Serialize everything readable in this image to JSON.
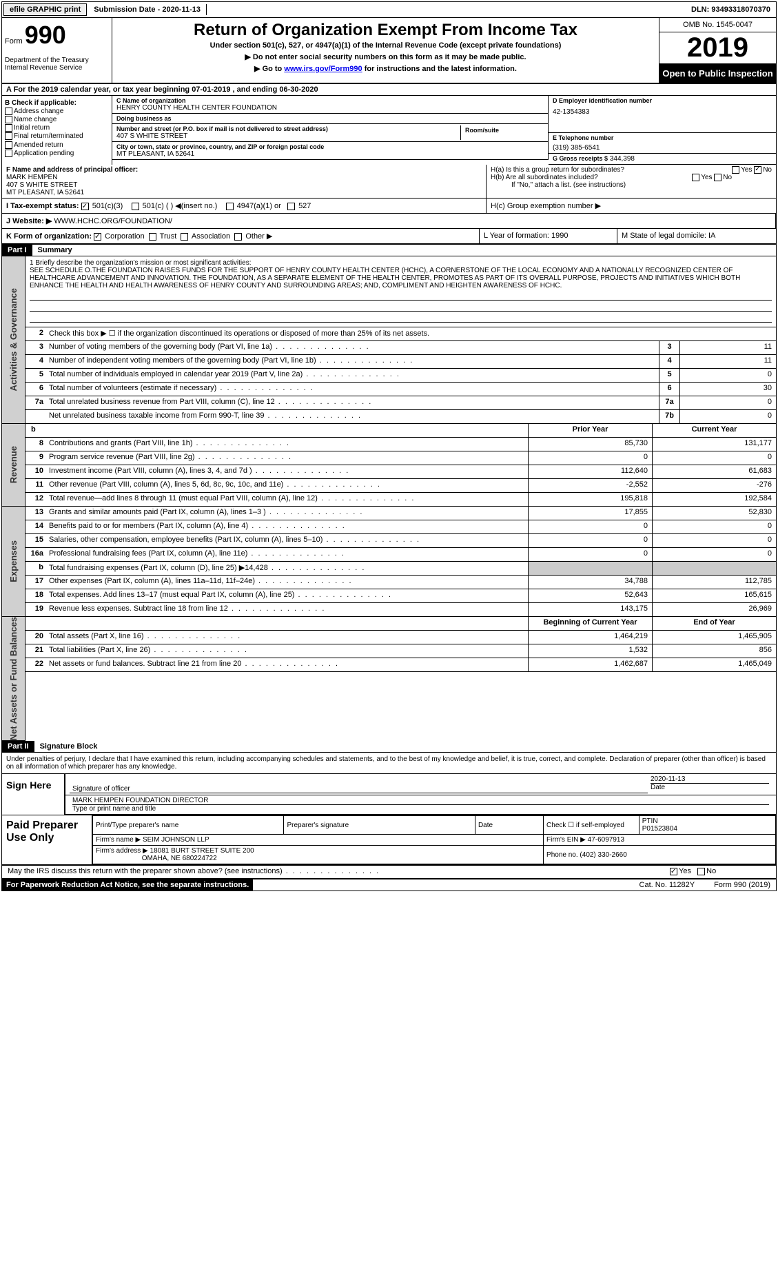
{
  "topbar": {
    "efile": "efile GRAPHIC print",
    "subdate_label": "Submission Date - ",
    "subdate": "2020-11-13",
    "dln_label": "DLN: ",
    "dln": "93493318070370"
  },
  "header": {
    "form": "Form",
    "n990": "990",
    "dept": "Department of the Treasury\nInternal Revenue Service",
    "title": "Return of Organization Exempt From Income Tax",
    "sub": "Under section 501(c), 527, or 4947(a)(1) of the Internal Revenue Code (except private foundations)",
    "sub2a": "▶ Do not enter social security numbers on this form as it may be made public.",
    "sub2b": "▶ Go to ",
    "link": "www.irs.gov/Form990",
    "sub2c": " for instructions and the latest information.",
    "omb": "OMB No. 1545-0047",
    "year": "2019",
    "open": "Open to Public Inspection"
  },
  "rowA": "A  For the 2019 calendar year, or tax year beginning 07-01-2019   , and ending 06-30-2020",
  "boxB": {
    "title": "B Check if applicable:",
    "items": [
      "Address change",
      "Name change",
      "Initial return",
      "Final return/terminated",
      "Amended return",
      "Application pending"
    ]
  },
  "boxC": {
    "name_lbl": "C Name of organization",
    "name": "HENRY COUNTY HEALTH CENTER FOUNDATION",
    "dba_lbl": "Doing business as",
    "dba": "",
    "addr_lbl": "Number and street (or P.O. box if mail is not delivered to street address)",
    "addr": "407 S WHITE STREET",
    "room_lbl": "Room/suite",
    "city_lbl": "City or town, state or province, country, and ZIP or foreign postal code",
    "city": "MT PLEASANT, IA  52641"
  },
  "boxD": {
    "ein_lbl": "D Employer identification number",
    "ein": "42-1354383",
    "tel_lbl": "E Telephone number",
    "tel": "(319) 385-6541",
    "gross_lbl": "G Gross receipts $",
    "gross": "344,398"
  },
  "boxF": {
    "lbl": "F  Name and address of principal officer:",
    "name": "MARK HEMPEN",
    "addr1": "407 S WHITE STREET",
    "addr2": "MT PLEASANT, IA  52641"
  },
  "boxH": {
    "ha": "H(a)  Is this a group return for subordinates?",
    "hb": "H(b)  Are all subordinates included?",
    "hb2": "If \"No,\" attach a list. (see instructions)",
    "hc": "H(c)  Group exemption number ▶",
    "yes": "Yes",
    "no": "No"
  },
  "rowI": {
    "lbl": "I   Tax-exempt status:",
    "o1": "501(c)(3)",
    "o2": "501(c) (  ) ◀(insert no.)",
    "o3": "4947(a)(1) or",
    "o4": "527"
  },
  "rowJ": {
    "lbl": "J  Website: ▶",
    "val": "WWW.HCHC.ORG/FOUNDATION/"
  },
  "rowK": {
    "k1_lbl": "K Form of organization:",
    "k1_opts": [
      "Corporation",
      "Trust",
      "Association",
      "Other ▶"
    ],
    "k2": "L Year of formation: 1990",
    "k3": "M State of legal domicile: IA"
  },
  "part1": {
    "hdr": "Part I",
    "title": "Summary"
  },
  "mission": {
    "lbl": "1   Briefly describe the organization's mission or most significant activities:",
    "text": "SEE SCHEDULE O.THE FOUNDATION RAISES FUNDS FOR THE SUPPORT OF HENRY COUNTY HEALTH CENTER (HCHC), A CORNERSTONE OF THE LOCAL ECONOMY AND A NATIONALLY RECOGNIZED CENTER OF HEALTHCARE ADVANCEMENT AND INNOVATION. THE FOUNDATION, AS A SEPARATE ELEMENT OF THE HEALTH CENTER, PROMOTES AS PART OF ITS OVERALL PURPOSE, PROJECTS AND INITIATIVES WHICH BOTH ENHANCE THE HEALTH AND HEALTH AWARENESS OF HENRY COUNTY AND SURROUNDING AREAS; AND, COMPLIMENT AND HEIGHTEN AWARENESS OF HCHC."
  },
  "gov": {
    "l2": "Check this box ▶ ☐ if the organization discontinued its operations or disposed of more than 25% of its net assets.",
    "rows": [
      {
        "n": "3",
        "d": "Number of voting members of the governing body (Part VI, line 1a)",
        "b": "3",
        "v": "11"
      },
      {
        "n": "4",
        "d": "Number of independent voting members of the governing body (Part VI, line 1b)",
        "b": "4",
        "v": "11"
      },
      {
        "n": "5",
        "d": "Total number of individuals employed in calendar year 2019 (Part V, line 2a)",
        "b": "5",
        "v": "0"
      },
      {
        "n": "6",
        "d": "Total number of volunteers (estimate if necessary)",
        "b": "6",
        "v": "30"
      },
      {
        "n": "7a",
        "d": "Total unrelated business revenue from Part VIII, column (C), line 12",
        "b": "7a",
        "v": "0"
      },
      {
        "n": "",
        "d": "Net unrelated business taxable income from Form 990-T, line 39",
        "b": "7b",
        "v": "0"
      }
    ]
  },
  "rev": {
    "hdr_b": "b",
    "hdr_prior": "Prior Year",
    "hdr_curr": "Current Year",
    "rows": [
      {
        "n": "8",
        "d": "Contributions and grants (Part VIII, line 1h)",
        "p": "85,730",
        "c": "131,177"
      },
      {
        "n": "9",
        "d": "Program service revenue (Part VIII, line 2g)",
        "p": "0",
        "c": "0"
      },
      {
        "n": "10",
        "d": "Investment income (Part VIII, column (A), lines 3, 4, and 7d )",
        "p": "112,640",
        "c": "61,683"
      },
      {
        "n": "11",
        "d": "Other revenue (Part VIII, column (A), lines 5, 6d, 8c, 9c, 10c, and 11e)",
        "p": "-2,552",
        "c": "-276"
      },
      {
        "n": "12",
        "d": "Total revenue—add lines 8 through 11 (must equal Part VIII, column (A), line 12)",
        "p": "195,818",
        "c": "192,584"
      }
    ]
  },
  "exp": {
    "rows": [
      {
        "n": "13",
        "d": "Grants and similar amounts paid (Part IX, column (A), lines 1–3 )",
        "p": "17,855",
        "c": "52,830"
      },
      {
        "n": "14",
        "d": "Benefits paid to or for members (Part IX, column (A), line 4)",
        "p": "0",
        "c": "0"
      },
      {
        "n": "15",
        "d": "Salaries, other compensation, employee benefits (Part IX, column (A), lines 5–10)",
        "p": "0",
        "c": "0"
      },
      {
        "n": "16a",
        "d": "Professional fundraising fees (Part IX, column (A), line 11e)",
        "p": "0",
        "c": "0"
      },
      {
        "n": "b",
        "d": "Total fundraising expenses (Part IX, column (D), line 25) ▶14,428",
        "p": "",
        "c": "",
        "shade": true
      },
      {
        "n": "17",
        "d": "Other expenses (Part IX, column (A), lines 11a–11d, 11f–24e)",
        "p": "34,788",
        "c": "112,785"
      },
      {
        "n": "18",
        "d": "Total expenses. Add lines 13–17 (must equal Part IX, column (A), line 25)",
        "p": "52,643",
        "c": "165,615"
      },
      {
        "n": "19",
        "d": "Revenue less expenses. Subtract line 18 from line 12",
        "p": "143,175",
        "c": "26,969"
      }
    ]
  },
  "net": {
    "hdr_b": "Beginning of Current Year",
    "hdr_e": "End of Year",
    "rows": [
      {
        "n": "20",
        "d": "Total assets (Part X, line 16)",
        "p": "1,464,219",
        "c": "1,465,905"
      },
      {
        "n": "21",
        "d": "Total liabilities (Part X, line 26)",
        "p": "1,532",
        "c": "856"
      },
      {
        "n": "22",
        "d": "Net assets or fund balances. Subtract line 21 from line 20",
        "p": "1,462,687",
        "c": "1,465,049"
      }
    ]
  },
  "part2": {
    "hdr": "Part II",
    "title": "Signature Block"
  },
  "perjury": "Under penalties of perjury, I declare that I have examined this return, including accompanying schedules and statements, and to the best of my knowledge and belief, it is true, correct, and complete. Declaration of preparer (other than officer) is based on all information of which preparer has any knowledge.",
  "sign": {
    "lbl": "Sign Here",
    "sig_lbl": "Signature of officer",
    "date": "2020-11-13",
    "date_lbl": "Date",
    "name": "MARK HEMPEN  FOUNDATION DIRECTOR",
    "name_lbl": "Type or print name and title"
  },
  "paid": {
    "lbl": "Paid Preparer Use Only",
    "h1": "Print/Type preparer's name",
    "h2": "Preparer's signature",
    "h3": "Date",
    "h4": "Check ☐ if self-employed",
    "h5_lbl": "PTIN",
    "h5": "P01523804",
    "firm_lbl": "Firm's name  ▶",
    "firm": "SEIM JOHNSON LLP",
    "ein_lbl": "Firm's EIN ▶",
    "ein": "47-6097913",
    "addr_lbl": "Firm's address ▶",
    "addr1": "18081 BURT STREET SUITE 200",
    "addr2": "OMAHA, NE  680224722",
    "phone_lbl": "Phone no.",
    "phone": "(402) 330-2660"
  },
  "discuss": {
    "q": "May the IRS discuss this return with the preparer shown above? (see instructions)",
    "yes": "Yes",
    "no": "No"
  },
  "footer": {
    "pra": "For Paperwork Reduction Act Notice, see the separate instructions.",
    "cat": "Cat. No. 11282Y",
    "form": "Form 990 (2019)"
  },
  "vtabs": {
    "gov": "Activities & Governance",
    "rev": "Revenue",
    "exp": "Expenses",
    "net": "Net Assets or Fund Balances"
  }
}
